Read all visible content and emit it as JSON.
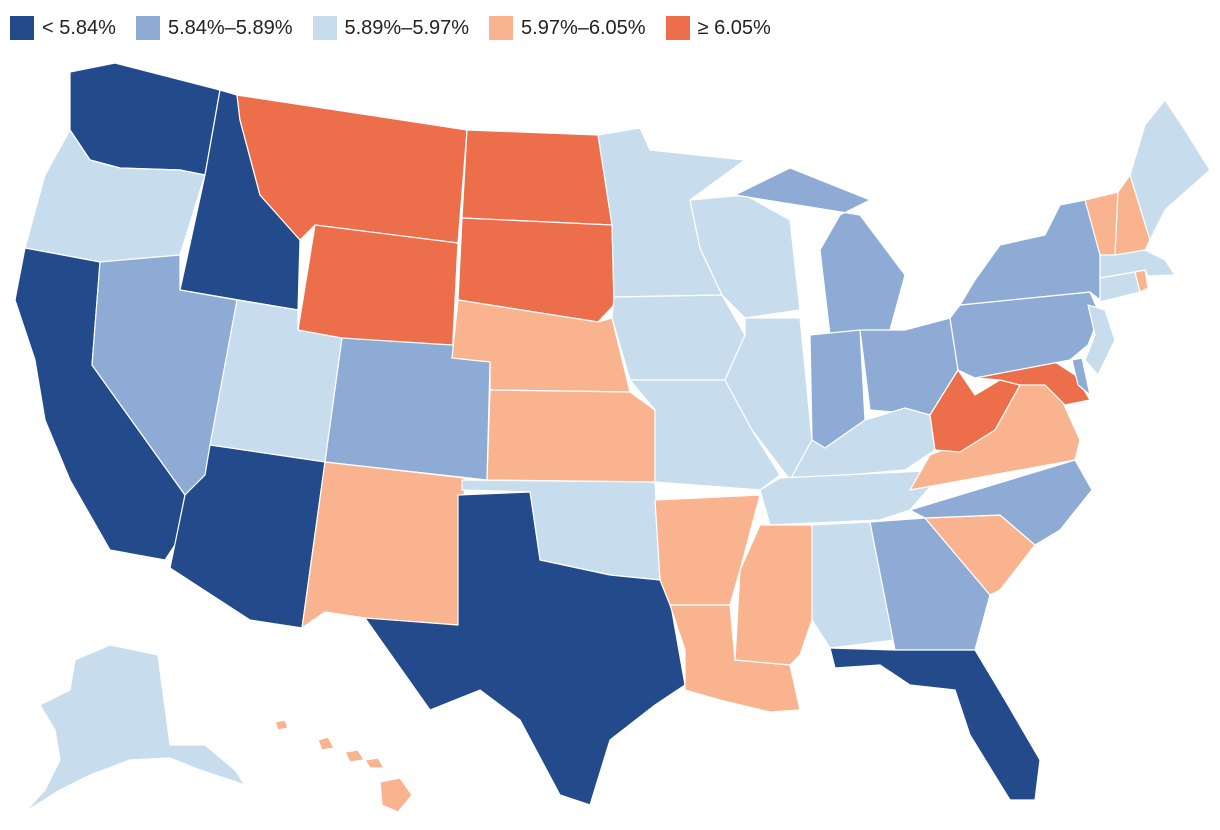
{
  "legend": [
    {
      "label": "< 5.84%",
      "color": "#234a8a"
    },
    {
      "label": "5.84%–5.89%",
      "color": "#8dabd5"
    },
    {
      "label": "5.89%–5.97%",
      "color": "#c7ddee"
    },
    {
      "label": "5.97%–6.05%",
      "color": "#f9b48f"
    },
    {
      "label": "≥ 6.05%",
      "color": "#ec6e4b"
    }
  ],
  "states": {
    "WA": {
      "name": "Washington",
      "bin": 0
    },
    "OR": {
      "name": "Oregon",
      "bin": 2
    },
    "CA": {
      "name": "California",
      "bin": 0
    },
    "ID": {
      "name": "Idaho",
      "bin": 0
    },
    "NV": {
      "name": "Nevada",
      "bin": 1
    },
    "UT": {
      "name": "Utah",
      "bin": 2
    },
    "AZ": {
      "name": "Arizona",
      "bin": 0
    },
    "MT": {
      "name": "Montana",
      "bin": 4
    },
    "WY": {
      "name": "Wyoming",
      "bin": 4
    },
    "CO": {
      "name": "Colorado",
      "bin": 1
    },
    "NM": {
      "name": "New Mexico",
      "bin": 3
    },
    "ND": {
      "name": "North Dakota",
      "bin": 4
    },
    "SD": {
      "name": "South Dakota",
      "bin": 4
    },
    "NE": {
      "name": "Nebraska",
      "bin": 3
    },
    "KS": {
      "name": "Kansas",
      "bin": 3
    },
    "OK": {
      "name": "Oklahoma",
      "bin": 2
    },
    "TX": {
      "name": "Texas",
      "bin": 0
    },
    "MN": {
      "name": "Minnesota",
      "bin": 2
    },
    "IA": {
      "name": "Iowa",
      "bin": 2
    },
    "MO": {
      "name": "Missouri",
      "bin": 2
    },
    "AR": {
      "name": "Arkansas",
      "bin": 3
    },
    "LA": {
      "name": "Louisiana",
      "bin": 3
    },
    "WI": {
      "name": "Wisconsin",
      "bin": 2
    },
    "IL": {
      "name": "Illinois",
      "bin": 2
    },
    "MI": {
      "name": "Michigan",
      "bin": 1
    },
    "IN": {
      "name": "Indiana",
      "bin": 1
    },
    "OH": {
      "name": "Ohio",
      "bin": 1
    },
    "KY": {
      "name": "Kentucky",
      "bin": 2
    },
    "TN": {
      "name": "Tennessee",
      "bin": 2
    },
    "MS": {
      "name": "Mississippi",
      "bin": 3
    },
    "AL": {
      "name": "Alabama",
      "bin": 2
    },
    "GA": {
      "name": "Georgia",
      "bin": 1
    },
    "FL": {
      "name": "Florida",
      "bin": 0
    },
    "SC": {
      "name": "South Carolina",
      "bin": 3
    },
    "NC": {
      "name": "North Carolina",
      "bin": 1
    },
    "VA": {
      "name": "Virginia",
      "bin": 3
    },
    "WV": {
      "name": "West Virginia",
      "bin": 4
    },
    "MD": {
      "name": "Maryland",
      "bin": 4
    },
    "DE": {
      "name": "Delaware",
      "bin": 1
    },
    "PA": {
      "name": "Pennsylvania",
      "bin": 1
    },
    "NJ": {
      "name": "New Jersey",
      "bin": 2
    },
    "NY": {
      "name": "New York",
      "bin": 1
    },
    "CT": {
      "name": "Connecticut",
      "bin": 2
    },
    "RI": {
      "name": "Rhode Island",
      "bin": 3
    },
    "MA": {
      "name": "Massachusetts",
      "bin": 2
    },
    "VT": {
      "name": "Vermont",
      "bin": 3
    },
    "NH": {
      "name": "New Hampshire",
      "bin": 3
    },
    "ME": {
      "name": "Maine",
      "bin": 2
    },
    "AK": {
      "name": "Alaska",
      "bin": 2
    },
    "HI": {
      "name": "Hawaii",
      "bin": 3
    }
  }
}
